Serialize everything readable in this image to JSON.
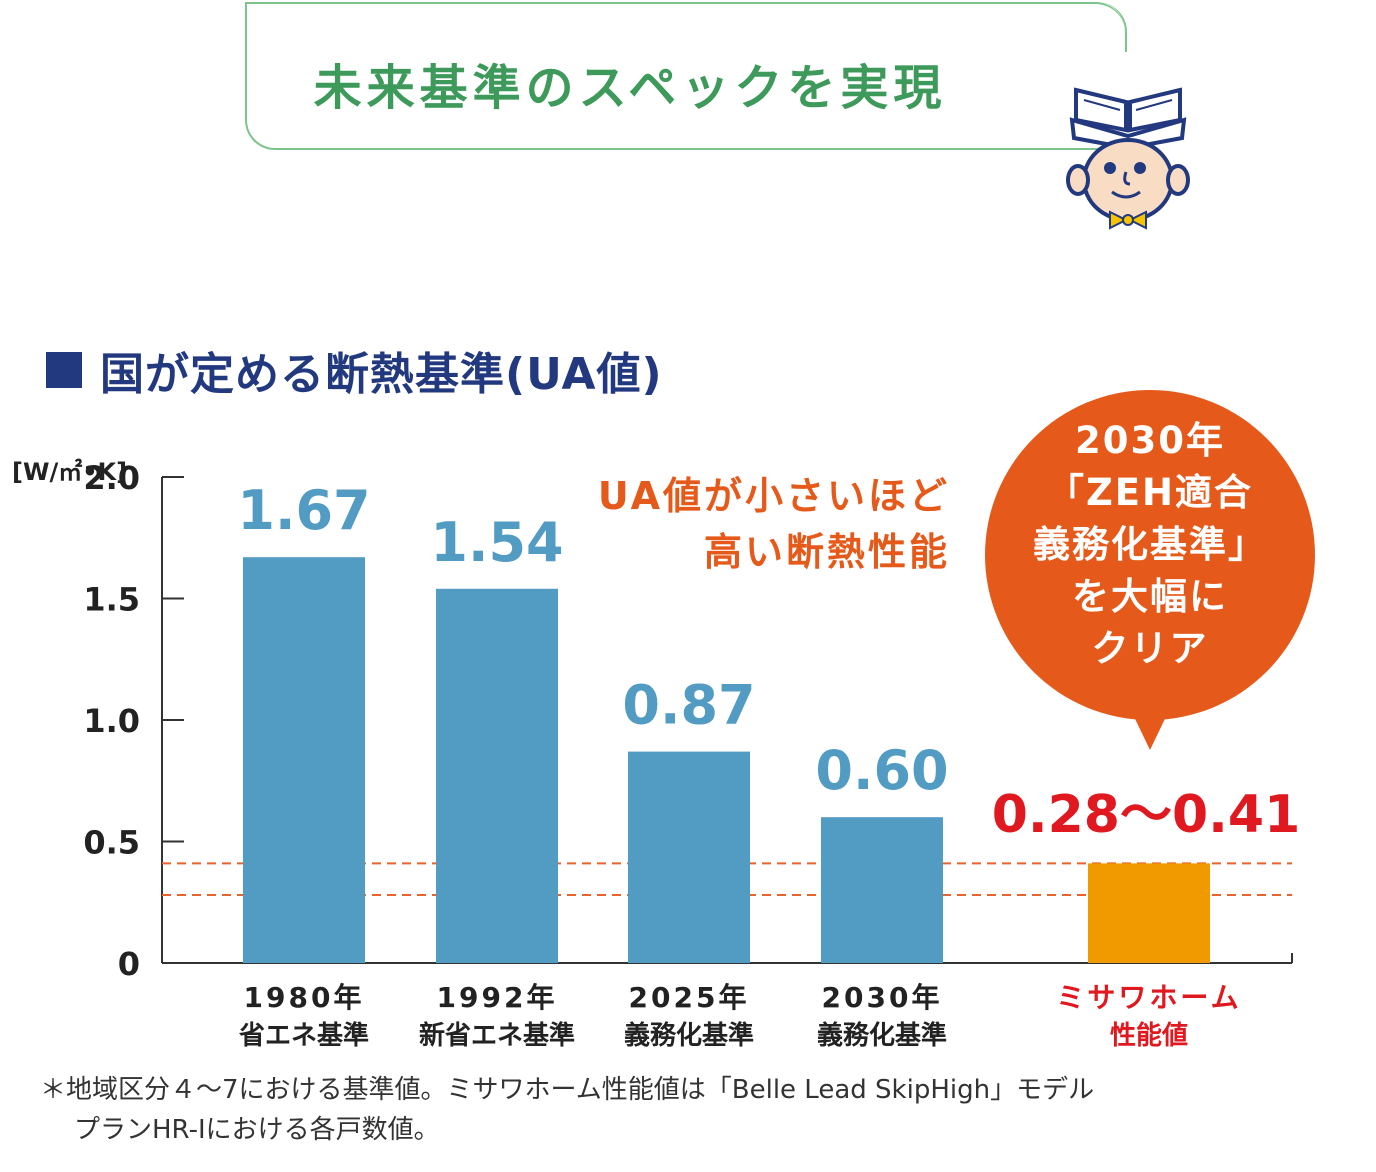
{
  "title": "未来基準のスペックを実現",
  "section_title": "国が定める断熱基準(UA値)",
  "unit": "[W/㎡•K]",
  "annotation": {
    "line1": "UA値が小さいほど",
    "line2": "高い断熱性能"
  },
  "bubble": {
    "lines": [
      "2030年",
      "「ZEH適合",
      "義務化基準」",
      "を大幅に",
      "クリア"
    ]
  },
  "footnote": {
    "line1": "＊地域区分４〜7における基準値。ミサワホーム性能値は「Belle Lead SkipHigh」モデル",
    "line2": "プランHR-Iにおける各戸数値。"
  },
  "chart_data": {
    "type": "bar",
    "ylabel": "[W/㎡•K]",
    "ylim": [
      0,
      2.0
    ],
    "yticks": [
      "0",
      "0.5",
      "1.0",
      "1.5",
      "2.0"
    ],
    "ytick_values": [
      0,
      0.5,
      1.0,
      1.5,
      2.0
    ],
    "categories": [
      {
        "line1": "1980年",
        "line2": "省エネ基準"
      },
      {
        "line1": "1992年",
        "line2": "新省エネ基準"
      },
      {
        "line1": "2025年",
        "line2": "義務化基準"
      },
      {
        "line1": "2030年",
        "line2": "義務化基準"
      },
      {
        "line1": "ミサワホーム",
        "line2": "性能値"
      }
    ],
    "values": [
      1.67,
      1.54,
      0.87,
      0.6,
      0.41
    ],
    "value_labels": [
      "1.67",
      "1.54",
      "0.87",
      "0.60",
      "0.28〜0.41"
    ],
    "range_lines": [
      0.28,
      0.41
    ],
    "colors": {
      "standard_bar": "#529bc3",
      "misawa_bar": "#f09a00",
      "value_label": "#529bc3",
      "misawa_label": "#e0181f",
      "dashed_line": "#e8642a"
    }
  }
}
